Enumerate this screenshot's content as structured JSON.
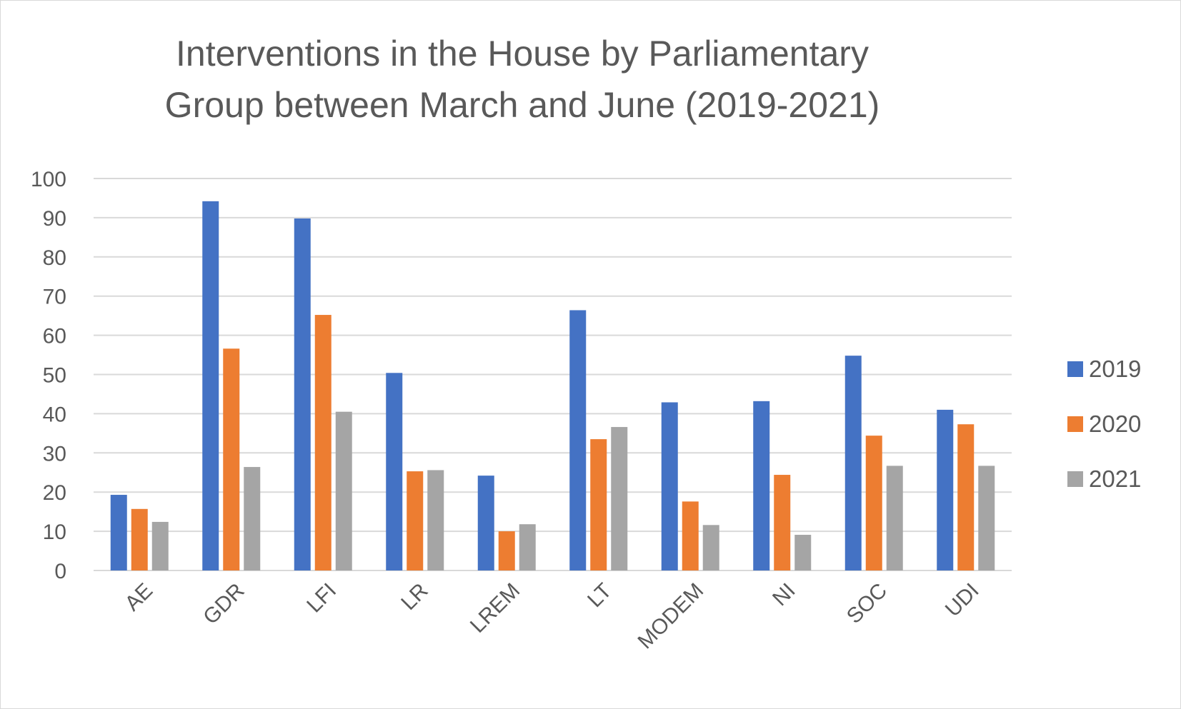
{
  "chart_data": {
    "type": "bar",
    "title": [
      "Interventions in the House by Parliamentary",
      "Group between March and June (2019-2021)"
    ],
    "categories": [
      "AE",
      "GDR",
      "LFI",
      "LR",
      "LREM",
      "LT",
      "MODEM",
      "NI",
      "SOC",
      "UDI"
    ],
    "series": [
      {
        "name": "2019",
        "color": "#4472c4",
        "values": [
          19.3,
          94.2,
          89.8,
          50.4,
          24.2,
          66.4,
          42.9,
          43.2,
          54.8,
          41.0
        ]
      },
      {
        "name": "2020",
        "color": "#ed7d31",
        "values": [
          15.7,
          56.6,
          65.2,
          25.3,
          10.0,
          33.5,
          17.6,
          24.4,
          34.4,
          37.3
        ]
      },
      {
        "name": "2021",
        "color": "#a5a5a5",
        "values": [
          12.4,
          26.4,
          40.5,
          25.6,
          11.8,
          36.6,
          11.6,
          9.1,
          26.7,
          26.7
        ]
      }
    ],
    "ylim": [
      0,
      100
    ],
    "yticks": [
      0,
      10,
      20,
      30,
      40,
      50,
      60,
      70,
      80,
      90,
      100
    ],
    "grid": true,
    "legend_position": "right"
  }
}
